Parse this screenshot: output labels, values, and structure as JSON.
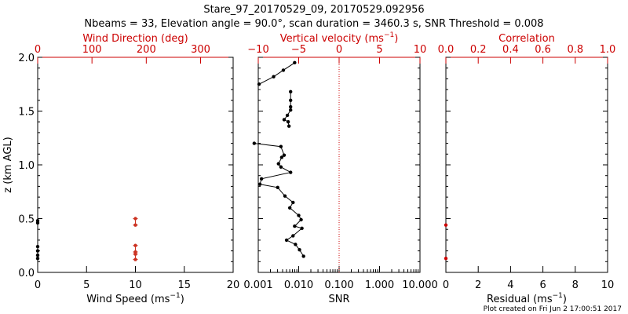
{
  "header": {
    "title": "Stare_97_20170529_09, 20170529.092956",
    "subtitle": "Nbeams = 33, Elevation angle = 90.0°, scan duration = 3460.3 s, SNR Threshold = 0.008"
  },
  "footer": {
    "note": "Plot created on Fri Jun  2 17:00:51 2017"
  },
  "colors": {
    "axis": "#000000",
    "accent": "#cc0000",
    "marker": "#000000",
    "wind_dir_marker": "#cc3322"
  },
  "chart_data": [
    {
      "id": "wind-panel",
      "type": "scatter",
      "ylabel": "z (km AGL)",
      "ylim": [
        0,
        2.0
      ],
      "yticks": [
        {
          "v": 0,
          "t": "0.0"
        },
        {
          "v": 0.5,
          "t": "0.5"
        },
        {
          "v": 1.0,
          "t": "1.0"
        },
        {
          "v": 1.5,
          "t": "1.5"
        },
        {
          "v": 2.0,
          "t": "2.0"
        }
      ],
      "bottom_axis": {
        "label": "Wind Speed (ms",
        "label_sup": "−1",
        "label_tail": ")",
        "xlim": [
          0,
          20
        ],
        "ticks": [
          {
            "v": 0,
            "t": "0"
          },
          {
            "v": 5,
            "t": "5"
          },
          {
            "v": 10,
            "t": "10"
          },
          {
            "v": 15,
            "t": "15"
          },
          {
            "v": 20,
            "t": "20"
          }
        ]
      },
      "top_axis": {
        "label": "Wind Direction (deg)",
        "xlim": [
          0,
          360
        ],
        "ticks": [
          {
            "v": 0,
            "t": "0"
          },
          {
            "v": 100,
            "t": "100"
          },
          {
            "v": 200,
            "t": "200"
          },
          {
            "v": 300,
            "t": "300"
          }
        ]
      },
      "series": [
        {
          "axis": "bottom",
          "points": [
            {
              "x": 0,
              "y": 0.48
            },
            {
              "x": 0,
              "y": 0.46
            },
            {
              "x": 0,
              "y": 0.24
            },
            {
              "x": 0,
              "y": 0.2
            },
            {
              "x": 0,
              "y": 0.16
            },
            {
              "x": 0,
              "y": 0.13
            }
          ]
        },
        {
          "axis": "top",
          "points": [
            {
              "x": 180,
              "y": 0.5
            },
            {
              "x": 180,
              "y": 0.44
            },
            {
              "x": 180,
              "y": 0.25
            },
            {
              "x": 180,
              "y": 0.19
            },
            {
              "x": 180,
              "y": 0.17
            },
            {
              "x": 180,
              "y": 0.12
            }
          ]
        }
      ]
    },
    {
      "id": "velocity-panel",
      "type": "line",
      "ylim": [
        0,
        2.0
      ],
      "bottom_axis": {
        "label": "SNR",
        "scale": "log",
        "xlim": [
          0.001,
          10
        ],
        "ticks": [
          {
            "v": 0.001,
            "t": "0.001"
          },
          {
            "v": 0.01,
            "t": "0.010"
          },
          {
            "v": 0.1,
            "t": "0.100"
          },
          {
            "v": 1,
            "t": "1.000"
          },
          {
            "v": 10,
            "t": "10.000"
          }
        ]
      },
      "top_axis": {
        "label": "Vertical velocity (ms",
        "label_sup": "−1",
        "label_tail": ")",
        "xlim": [
          -10,
          10
        ],
        "ticks": [
          {
            "v": -10,
            "t": "−10"
          },
          {
            "v": -5,
            "t": "−5"
          },
          {
            "v": 0,
            "t": "0"
          },
          {
            "v": 5,
            "t": "5"
          },
          {
            "v": 10,
            "t": "10"
          }
        ],
        "zero_line": 0
      },
      "series": [
        {
          "axis": "top",
          "segments": [
            [
              {
                "x": -5.5,
                "y": 1.95
              },
              {
                "x": -6.9,
                "y": 1.88
              },
              {
                "x": -8.1,
                "y": 1.82
              },
              {
                "x": -9.9,
                "y": 1.75
              }
            ],
            [
              {
                "x": -6.0,
                "y": 1.68
              },
              {
                "x": -6.0,
                "y": 1.6
              },
              {
                "x": -6.0,
                "y": 1.54
              },
              {
                "x": -6.0,
                "y": 1.51
              },
              {
                "x": -6.4,
                "y": 1.46
              },
              {
                "x": -6.8,
                "y": 1.42
              },
              {
                "x": -6.3,
                "y": 1.4
              },
              {
                "x": -6.2,
                "y": 1.36
              }
            ],
            [
              {
                "x": -10.5,
                "y": 1.2
              },
              {
                "x": -7.2,
                "y": 1.17
              },
              {
                "x": -6.8,
                "y": 1.09
              },
              {
                "x": -7.1,
                "y": 1.07
              },
              {
                "x": -7.5,
                "y": 1.01
              },
              {
                "x": -7.2,
                "y": 0.98
              },
              {
                "x": -6.0,
                "y": 0.93
              },
              {
                "x": -9.6,
                "y": 0.87
              },
              {
                "x": -9.8,
                "y": 0.82
              },
              {
                "x": -7.6,
                "y": 0.79
              },
              {
                "x": -6.7,
                "y": 0.71
              },
              {
                "x": -5.7,
                "y": 0.65
              },
              {
                "x": -6.1,
                "y": 0.6
              },
              {
                "x": -5.0,
                "y": 0.53
              },
              {
                "x": -4.7,
                "y": 0.49
              },
              {
                "x": -5.5,
                "y": 0.43
              },
              {
                "x": -4.6,
                "y": 0.41
              },
              {
                "x": -5.7,
                "y": 0.34
              },
              {
                "x": -6.5,
                "y": 0.3
              },
              {
                "x": -5.4,
                "y": 0.26
              },
              {
                "x": -4.9,
                "y": 0.21
              },
              {
                "x": -4.4,
                "y": 0.15
              }
            ]
          ]
        }
      ]
    },
    {
      "id": "correlation-panel",
      "type": "scatter",
      "ylim": [
        0,
        2.0
      ],
      "bottom_axis": {
        "label": "Residual (ms",
        "label_sup": "−1",
        "label_tail": ")",
        "xlim": [
          0,
          10
        ],
        "ticks": [
          {
            "v": 0,
            "t": "0"
          },
          {
            "v": 2,
            "t": "2"
          },
          {
            "v": 4,
            "t": "4"
          },
          {
            "v": 6,
            "t": "6"
          },
          {
            "v": 8,
            "t": "8"
          },
          {
            "v": 10,
            "t": "10"
          }
        ]
      },
      "top_axis": {
        "label": "Correlation",
        "xlim": [
          0,
          1.0
        ],
        "ticks": [
          {
            "v": 0,
            "t": "0.0"
          },
          {
            "v": 0.2,
            "t": "0.2"
          },
          {
            "v": 0.4,
            "t": "0.4"
          },
          {
            "v": 0.6,
            "t": "0.6"
          },
          {
            "v": 0.8,
            "t": "0.8"
          },
          {
            "v": 1.0,
            "t": "1.0"
          }
        ]
      },
      "series": [
        {
          "axis": "bottom",
          "points": [
            {
              "x": 0,
              "y": 0.44
            },
            {
              "x": 0,
              "y": 0.13
            }
          ]
        }
      ]
    }
  ]
}
